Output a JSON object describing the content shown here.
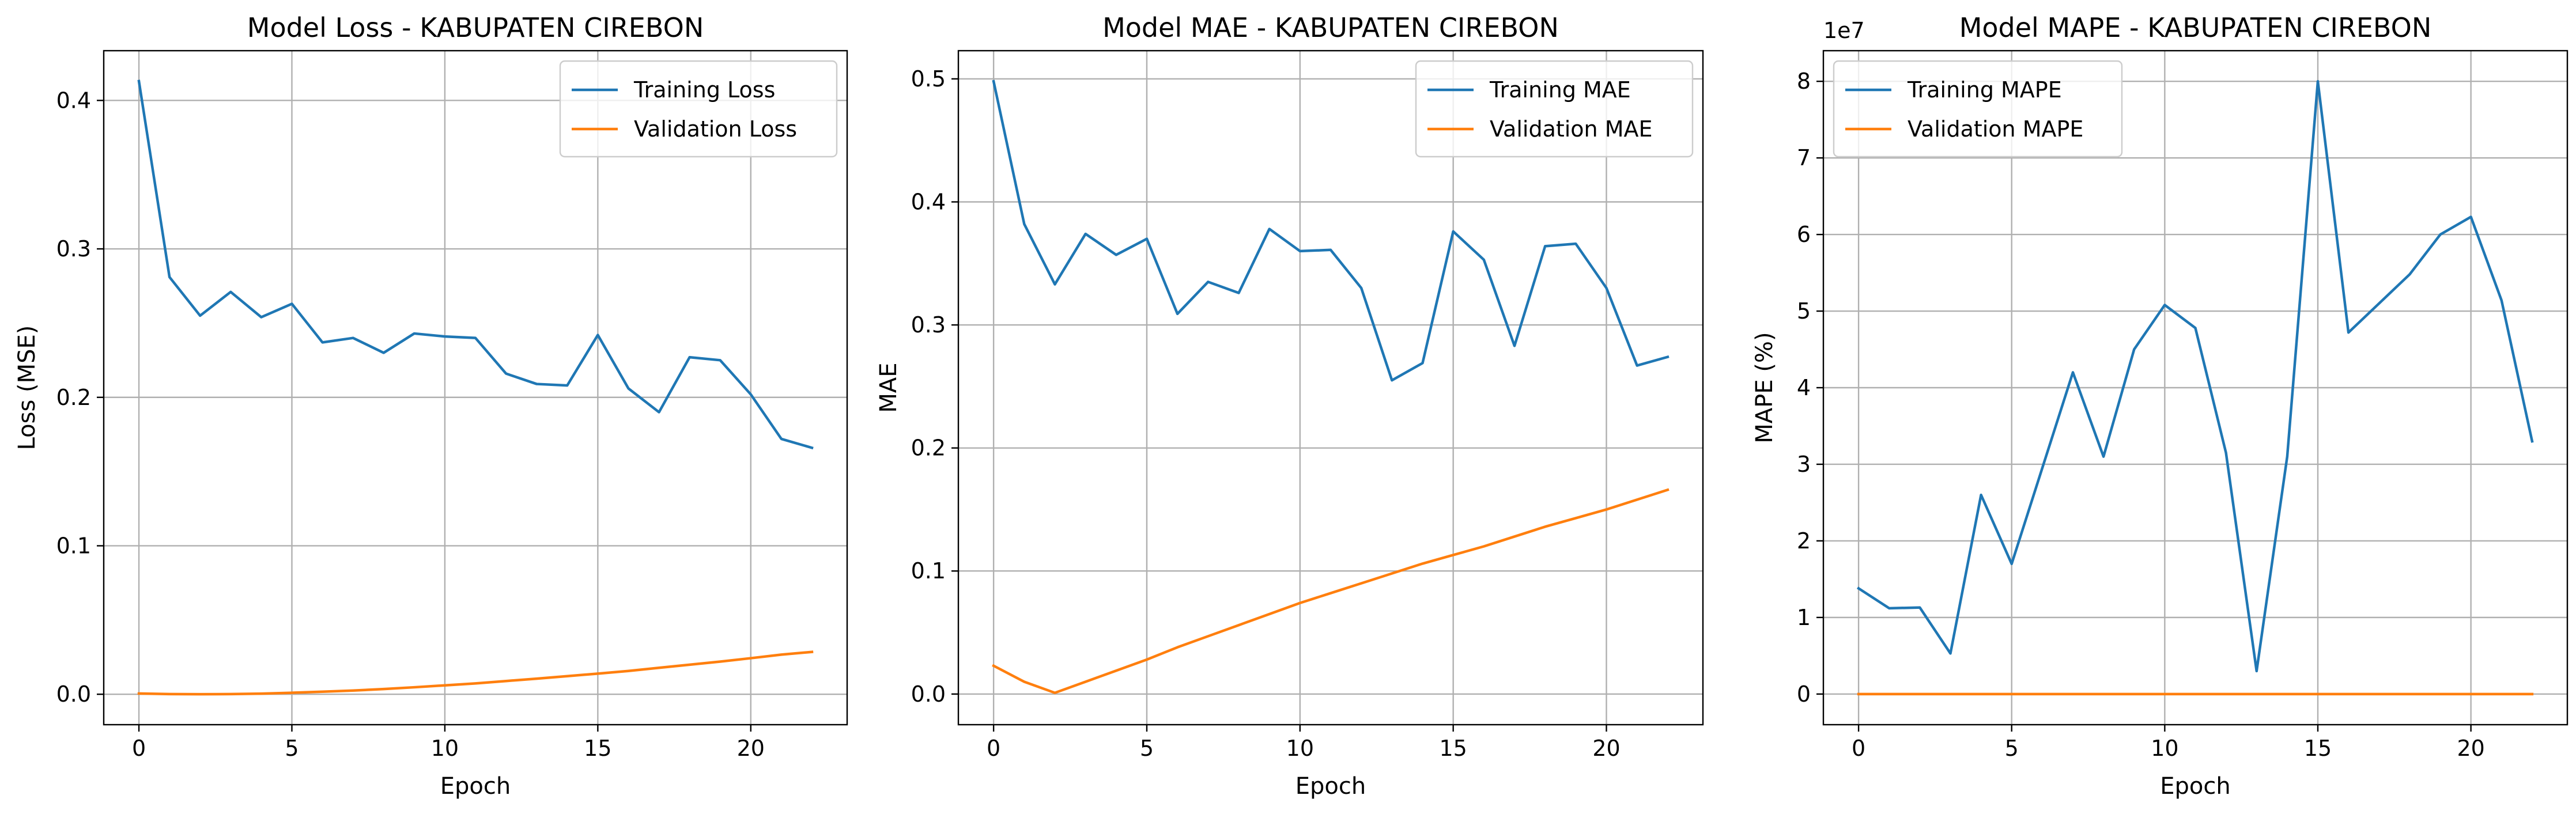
{
  "chart_data": [
    {
      "type": "line",
      "title": "Model Loss - KABUPATEN CIREBON",
      "xlabel": "Epoch",
      "ylabel": "Loss (MSE)",
      "offset_text": "",
      "xlim": [
        -1.15,
        23.15
      ],
      "ylim": [
        -0.0205,
        0.4335
      ],
      "xticks": [
        0,
        5,
        10,
        15,
        20
      ],
      "xtick_labels": [
        "0",
        "5",
        "10",
        "15",
        "20"
      ],
      "yticks": [
        0.0,
        0.1,
        0.2,
        0.3,
        0.4
      ],
      "ytick_labels": [
        "0.0",
        "0.1",
        "0.2",
        "0.3",
        "0.4"
      ],
      "grid": true,
      "legend_position": "upper right",
      "x": [
        0,
        1,
        2,
        3,
        4,
        5,
        6,
        7,
        8,
        9,
        10,
        11,
        12,
        13,
        14,
        15,
        16,
        17,
        18,
        19,
        20,
        21,
        22
      ],
      "series": [
        {
          "name": "Training Loss",
          "color": "#1f77b4",
          "values": [
            0.413,
            0.281,
            0.255,
            0.271,
            0.254,
            0.263,
            0.237,
            0.24,
            0.23,
            0.243,
            0.241,
            0.24,
            0.216,
            0.209,
            0.208,
            0.242,
            0.206,
            0.19,
            0.227,
            0.225,
            0.202,
            0.172,
            0.166
          ]
        },
        {
          "name": "Validation Loss",
          "color": "#ff7f0e",
          "values": [
            0.0005,
            0.0001,
            0.0,
            0.0001,
            0.0004,
            0.001,
            0.0017,
            0.0025,
            0.0035,
            0.0047,
            0.006,
            0.0073,
            0.0089,
            0.0105,
            0.0122,
            0.0139,
            0.0157,
            0.0178,
            0.0199,
            0.022,
            0.0243,
            0.0267,
            0.0285
          ]
        }
      ]
    },
    {
      "type": "line",
      "title": "Model MAE - KABUPATEN CIREBON",
      "xlabel": "Epoch",
      "ylabel": "MAE",
      "offset_text": "",
      "xlim": [
        -1.15,
        23.15
      ],
      "ylim": [
        -0.0249,
        0.5229
      ],
      "xticks": [
        0,
        5,
        10,
        15,
        20
      ],
      "xtick_labels": [
        "0",
        "5",
        "10",
        "15",
        "20"
      ],
      "yticks": [
        0.0,
        0.1,
        0.2,
        0.3,
        0.4,
        0.5
      ],
      "ytick_labels": [
        "0.0",
        "0.1",
        "0.2",
        "0.3",
        "0.4",
        "0.5"
      ],
      "grid": true,
      "legend_position": "upper right",
      "x": [
        0,
        1,
        2,
        3,
        4,
        5,
        6,
        7,
        8,
        9,
        10,
        11,
        12,
        13,
        14,
        15,
        16,
        17,
        18,
        19,
        20,
        21,
        22
      ],
      "series": [
        {
          "name": "Training MAE",
          "color": "#1f77b4",
          "values": [
            0.498,
            0.382,
            0.333,
            0.374,
            0.357,
            0.37,
            0.309,
            0.335,
            0.326,
            0.378,
            0.36,
            0.361,
            0.33,
            0.255,
            0.269,
            0.376,
            0.353,
            0.283,
            0.364,
            0.366,
            0.33,
            0.267,
            0.274
          ]
        },
        {
          "name": "Validation MAE",
          "color": "#ff7f0e",
          "values": [
            0.023,
            0.01,
            0.001,
            0.01,
            0.019,
            0.028,
            0.038,
            0.047,
            0.056,
            0.065,
            0.074,
            0.082,
            0.09,
            0.098,
            0.106,
            0.113,
            0.12,
            0.128,
            0.136,
            0.143,
            0.15,
            0.158,
            0.166
          ]
        }
      ]
    },
    {
      "type": "line",
      "title": "Model MAPE - KABUPATEN CIREBON",
      "xlabel": "Epoch",
      "ylabel": "MAPE (%)",
      "offset_text": "1e7",
      "xlim": [
        -1.15,
        23.15
      ],
      "ylim": [
        -0.4,
        8.4
      ],
      "xticks": [
        0,
        5,
        10,
        15,
        20
      ],
      "xtick_labels": [
        "0",
        "5",
        "10",
        "15",
        "20"
      ],
      "yticks": [
        0,
        1,
        2,
        3,
        4,
        5,
        6,
        7,
        8
      ],
      "ytick_labels": [
        "0",
        "1",
        "2",
        "3",
        "4",
        "5",
        "6",
        "7",
        "8"
      ],
      "grid": true,
      "legend_position": "upper left",
      "x": [
        0,
        1,
        2,
        3,
        4,
        5,
        6,
        7,
        8,
        9,
        10,
        11,
        12,
        13,
        14,
        15,
        16,
        17,
        18,
        19,
        20,
        21,
        22
      ],
      "series": [
        {
          "name": "Training MAPE",
          "color": "#1f77b4",
          "values": [
            1.38,
            1.12,
            1.13,
            0.53,
            2.6,
            1.7,
            2.95,
            4.2,
            3.1,
            4.5,
            5.08,
            4.78,
            3.15,
            0.3,
            3.1,
            8.0,
            4.72,
            5.1,
            5.48,
            6.0,
            6.23,
            5.14,
            3.3
          ]
        },
        {
          "name": "Validation MAPE",
          "color": "#ff7f0e",
          "values": [
            0,
            0,
            0,
            0,
            0,
            0,
            0,
            0,
            0,
            0,
            0,
            0,
            0,
            0,
            0,
            0,
            0,
            0,
            0,
            0,
            0,
            0,
            0
          ]
        }
      ]
    }
  ]
}
